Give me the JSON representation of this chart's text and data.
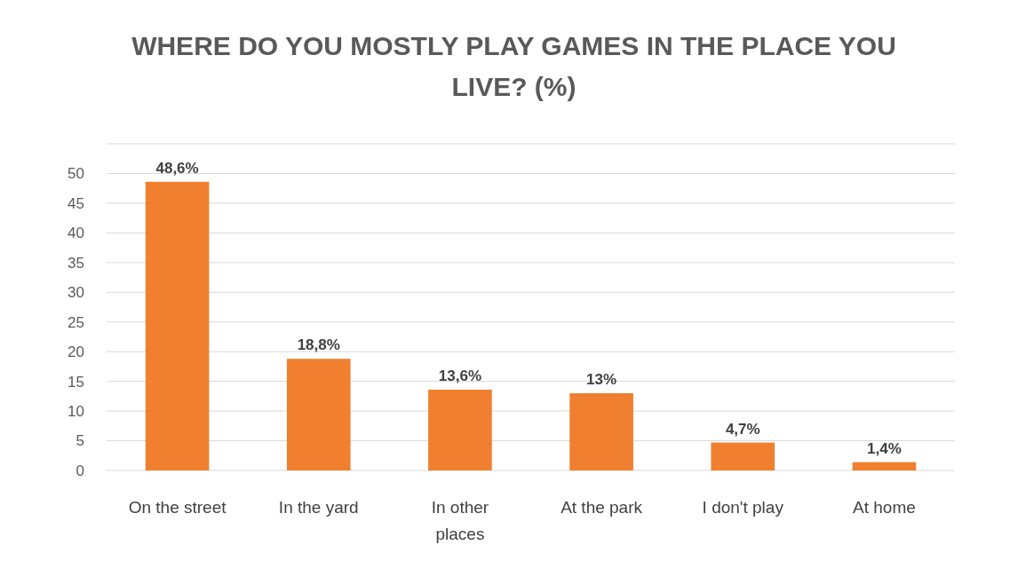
{
  "chart_data": {
    "type": "bar",
    "title": "WHERE DO YOU MOSTLY PLAY GAMES IN THE PLACE YOU LIVE? (%)",
    "categories": [
      "On the street",
      "In the yard",
      "In other places",
      "At the park",
      "I don't play",
      "At home"
    ],
    "values": [
      48.6,
      18.8,
      13.6,
      13,
      4.7,
      1.4
    ],
    "value_labels": [
      "48,6%",
      "18,8%",
      "13,6%",
      "13%",
      "4,7%",
      "1,4%"
    ],
    "color": "#f07f2f",
    "ylim": [
      0,
      55
    ],
    "yticks": [
      0,
      5,
      10,
      15,
      20,
      25,
      30,
      35,
      40,
      45,
      50,
      {
        "value": 55,
        "label": null
      }
    ],
    "grid": "y"
  }
}
